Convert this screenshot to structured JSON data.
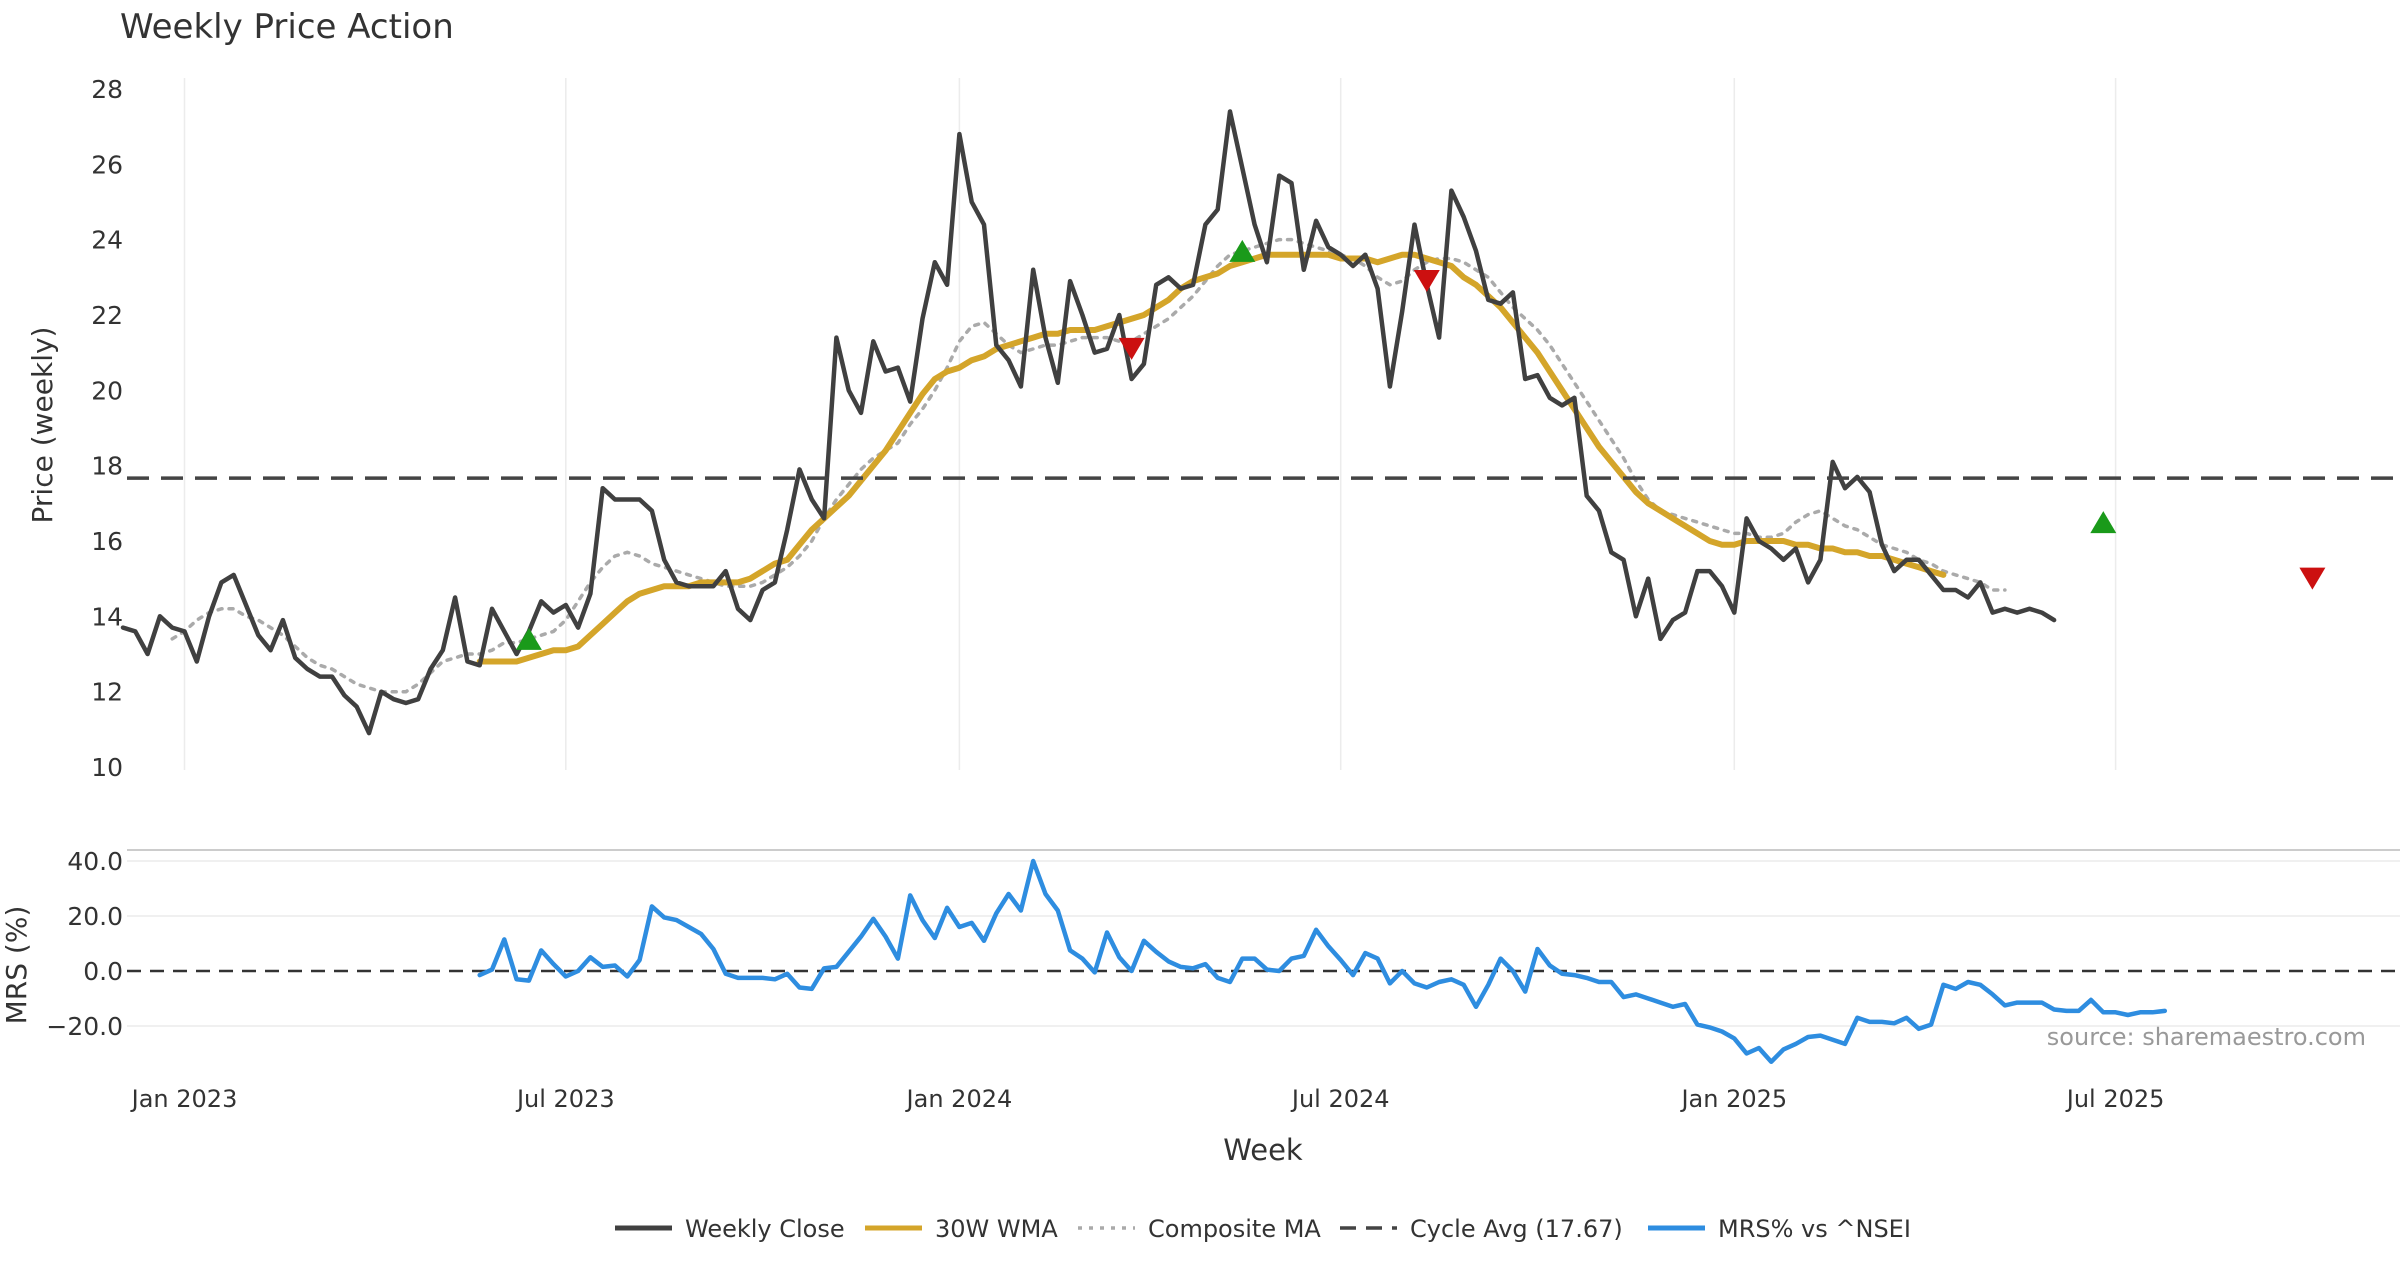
{
  "chart_data": [
    {
      "type": "line",
      "title": "Weekly Price Action",
      "ylabel": "Price (weekly)",
      "ylim": [
        10,
        28
      ],
      "yticks": [
        10,
        12,
        14,
        16,
        18,
        20,
        22,
        24,
        26,
        28
      ],
      "x_tick_labels": [
        "Jan 2023",
        "Jul 2023",
        "Jan 2024",
        "Jul 2024",
        "Jan 2025",
        "Jul 2025"
      ],
      "x_tick_weeks": [
        5,
        36,
        68,
        99,
        131,
        162
      ],
      "week_count": 187,
      "series": [
        {
          "name": "Weekly Close",
          "color": "#404040",
          "style": "solid",
          "start_week": 0,
          "values": [
            13.7,
            13.6,
            13.0,
            14.0,
            13.7,
            13.6,
            12.8,
            14.0,
            14.9,
            15.1,
            14.3,
            13.5,
            13.1,
            13.9,
            12.9,
            12.6,
            12.4,
            12.4,
            11.9,
            11.6,
            10.9,
            12.0,
            11.8,
            11.7,
            11.8,
            12.6,
            13.1,
            14.5,
            12.8,
            12.7,
            14.2,
            13.6,
            13.0,
            13.6,
            14.4,
            14.1,
            14.3,
            13.7,
            14.6,
            17.4,
            17.1,
            17.1,
            17.1,
            16.8,
            15.5,
            14.9,
            14.8,
            14.8,
            14.8,
            15.2,
            14.2,
            13.9,
            14.7,
            14.9,
            16.3,
            17.9,
            17.1,
            16.6,
            21.4,
            20.0,
            19.4,
            21.3,
            20.5,
            20.6,
            19.7,
            21.9,
            23.4,
            22.8,
            26.8,
            25.0,
            24.4,
            21.2,
            20.8,
            20.1,
            23.2,
            21.4,
            20.2,
            22.9,
            22.0,
            21.0,
            21.1,
            22.0,
            20.3,
            20.7,
            22.8,
            23.0,
            22.7,
            22.8,
            24.4,
            24.8,
            27.4,
            25.9,
            24.4,
            23.4,
            25.7,
            25.5,
            23.2,
            24.5,
            23.8,
            23.6,
            23.3,
            23.6,
            22.7,
            20.1,
            22.1,
            24.4,
            22.8,
            21.4,
            25.3,
            24.6,
            23.7,
            22.4,
            22.3,
            22.6,
            20.3,
            20.4,
            19.8,
            19.6,
            19.8,
            17.2,
            16.8,
            15.7,
            15.5,
            14.0,
            15.0,
            13.4,
            13.9,
            14.1,
            15.2,
            15.2,
            14.8,
            14.1,
            16.6,
            16.0,
            15.8,
            15.5,
            15.8,
            14.9,
            15.5,
            18.1,
            17.4,
            17.7,
            17.3,
            15.9,
            15.2,
            15.5,
            15.5,
            15.1,
            14.7,
            14.7,
            14.5,
            14.9,
            14.1,
            14.2,
            14.1,
            14.2,
            14.1,
            13.9
          ]
        },
        {
          "name": "30W WMA",
          "color": "#d4a52a",
          "style": "solid",
          "start_week": 29,
          "values": [
            12.8,
            12.8,
            12.8,
            12.8,
            12.9,
            13.0,
            13.1,
            13.1,
            13.2,
            13.5,
            13.8,
            14.1,
            14.4,
            14.6,
            14.7,
            14.8,
            14.8,
            14.8,
            14.9,
            14.9,
            14.9,
            14.9,
            15.0,
            15.2,
            15.4,
            15.5,
            15.9,
            16.3,
            16.6,
            16.9,
            17.2,
            17.6,
            18.0,
            18.4,
            18.9,
            19.4,
            19.9,
            20.3,
            20.5,
            20.6,
            20.8,
            20.9,
            21.1,
            21.2,
            21.3,
            21.4,
            21.5,
            21.5,
            21.6,
            21.6,
            21.6,
            21.7,
            21.8,
            21.9,
            22.0,
            22.2,
            22.4,
            22.7,
            22.9,
            23.0,
            23.1,
            23.3,
            23.4,
            23.5,
            23.6,
            23.6,
            23.6,
            23.6,
            23.6,
            23.6,
            23.5,
            23.5,
            23.5,
            23.4,
            23.5,
            23.6,
            23.6,
            23.5,
            23.4,
            23.3,
            23.0,
            22.8,
            22.5,
            22.2,
            21.8,
            21.4,
            21.0,
            20.5,
            20.0,
            19.5,
            19.0,
            18.5,
            18.1,
            17.7,
            17.3,
            17.0,
            16.8,
            16.6,
            16.4,
            16.2,
            16.0,
            15.9,
            15.9,
            16.0,
            16.0,
            16.0,
            16.0,
            15.9,
            15.9,
            15.8,
            15.8,
            15.7,
            15.7,
            15.6,
            15.6,
            15.5,
            15.4,
            15.3,
            15.2,
            15.1
          ]
        },
        {
          "name": "Composite MA",
          "color": "#aaaaaa",
          "style": "dotted",
          "start_week": 4,
          "values": [
            13.4,
            13.6,
            13.9,
            14.1,
            14.2,
            14.2,
            14.0,
            13.9,
            13.7,
            13.5,
            13.2,
            12.9,
            12.7,
            12.6,
            12.4,
            12.2,
            12.1,
            12.0,
            12.0,
            12.0,
            12.2,
            12.5,
            12.8,
            12.9,
            13.0,
            13.0,
            13.1,
            13.3,
            13.3,
            13.4,
            13.5,
            13.6,
            13.9,
            14.4,
            14.9,
            15.3,
            15.6,
            15.7,
            15.6,
            15.4,
            15.3,
            15.2,
            15.1,
            15.0,
            14.9,
            14.8,
            14.8,
            14.8,
            14.9,
            15.1,
            15.3,
            15.6,
            16.0,
            16.6,
            17.1,
            17.5,
            17.9,
            18.2,
            18.4,
            18.6,
            19.1,
            19.5,
            20.0,
            20.6,
            21.3,
            21.7,
            21.8,
            21.5,
            21.2,
            21.0,
            21.1,
            21.2,
            21.2,
            21.3,
            21.4,
            21.4,
            21.4,
            21.3,
            21.3,
            21.5,
            21.7,
            21.9,
            22.2,
            22.5,
            22.9,
            23.3,
            23.6,
            23.7,
            23.8,
            23.9,
            24.0,
            24.0,
            23.9,
            23.8,
            23.7,
            23.6,
            23.5,
            23.3,
            23.0,
            22.8,
            22.9,
            23.2,
            23.4,
            23.5,
            23.5,
            23.4,
            23.2,
            23.0,
            22.6,
            22.2,
            21.9,
            21.6,
            21.2,
            20.7,
            20.2,
            19.7,
            19.2,
            18.7,
            18.2,
            17.6,
            17.1,
            16.8,
            16.7,
            16.6,
            16.5,
            16.4,
            16.3,
            16.2,
            16.2,
            16.1,
            16.1,
            16.2,
            16.5,
            16.7,
            16.8,
            16.6,
            16.4,
            16.3,
            16.1,
            15.9,
            15.8,
            15.7,
            15.5,
            15.4,
            15.2,
            15.1,
            15.0,
            14.9,
            14.7,
            14.7
          ]
        },
        {
          "name": "Cycle Avg (17.67)",
          "color": "#444444",
          "style": "dashed",
          "constant": 17.67
        }
      ],
      "signals": [
        {
          "type": "buy",
          "week": 33,
          "price": 13.4
        },
        {
          "type": "sell",
          "week": 82,
          "price": 21.1
        },
        {
          "type": "buy",
          "week": 91,
          "price": 23.7
        },
        {
          "type": "sell",
          "week": 106,
          "price": 22.9
        },
        {
          "type": "buy",
          "week": 161,
          "price": 16.5
        },
        {
          "type": "sell",
          "week": 178,
          "price": 15.0
        }
      ]
    },
    {
      "type": "line",
      "ylabel": "MRS (%)",
      "xlabel": "Week",
      "ylim": [
        -32,
        40
      ],
      "yticks": [
        -20,
        0,
        20,
        40
      ],
      "ytick_labels": [
        "−20.0",
        "0.0",
        "20.0",
        "40.0"
      ],
      "zero_line": 0,
      "series": [
        {
          "name": "MRS% vs ^NSEI",
          "color": "#2e8de0",
          "style": "solid",
          "start_week": 29,
          "values": [
            -1.5,
            0.5,
            11.5,
            -3.0,
            -3.5,
            7.5,
            2.5,
            -2.0,
            0.0,
            5.0,
            1.5,
            2.0,
            -2.0,
            4.0,
            23.5,
            19.5,
            18.5,
            16.0,
            13.5,
            8.0,
            -1.0,
            -2.5,
            -2.5,
            -2.5,
            -3.0,
            -1.0,
            -6.0,
            -6.5,
            1.0,
            1.5,
            7.0,
            12.5,
            19.0,
            12.5,
            4.5,
            27.5,
            18.5,
            12.0,
            23.0,
            16.0,
            17.5,
            11.0,
            21.0,
            28.0,
            22.0,
            40.0,
            28.0,
            22.0,
            7.5,
            4.5,
            -0.5,
            14.0,
            5.0,
            0.0,
            11.0,
            7.0,
            3.5,
            1.5,
            1.0,
            2.5,
            -2.5,
            -4.0,
            4.5,
            4.5,
            0.5,
            0.0,
            4.5,
            5.5,
            15.0,
            9.0,
            4.0,
            -1.5,
            6.5,
            4.5,
            -4.5,
            0.0,
            -4.5,
            -6.0,
            -4.0,
            -3.0,
            -5.0,
            -13.0,
            -5.0,
            4.5,
            0.0,
            -7.5,
            8.0,
            2.0,
            -1.0,
            -1.5,
            -2.5,
            -4.0,
            -4.0,
            -9.5,
            -8.5,
            -10.0,
            -11.5,
            -13.0,
            -12.0,
            -19.5,
            -20.5,
            -22.0,
            -24.5,
            -30.0,
            -28.0,
            -33.0,
            -28.5,
            -26.5,
            -24.0,
            -23.5,
            -25.0,
            -26.5,
            -17.0,
            -18.5,
            -18.5,
            -19.0,
            -17.0,
            -21.0,
            -19.5,
            -5.0,
            -6.5,
            -4.0,
            -5.0,
            -8.5,
            -12.5,
            -11.5,
            -11.5,
            -11.5,
            -14.0,
            -14.5,
            -14.5,
            -10.5,
            -15.0,
            -15.0,
            -16.0,
            -15.0,
            -15.0,
            -14.5
          ]
        }
      ]
    }
  ],
  "legend": [
    {
      "label": "Weekly Close",
      "color": "#404040",
      "style": "solid"
    },
    {
      "label": "30W WMA",
      "color": "#d4a52a",
      "style": "solid"
    },
    {
      "label": "Composite MA",
      "color": "#aaaaaa",
      "style": "dotted"
    },
    {
      "label": "Cycle Avg (17.67)",
      "color": "#444444",
      "style": "dashed"
    },
    {
      "label": "MRS% vs ^NSEI",
      "color": "#2e8de0",
      "style": "solid"
    }
  ],
  "source_note": "source: sharemaestro.com",
  "colors": {
    "buy": "#1a9a1a",
    "sell": "#cc1010",
    "grid": "#ececec"
  }
}
